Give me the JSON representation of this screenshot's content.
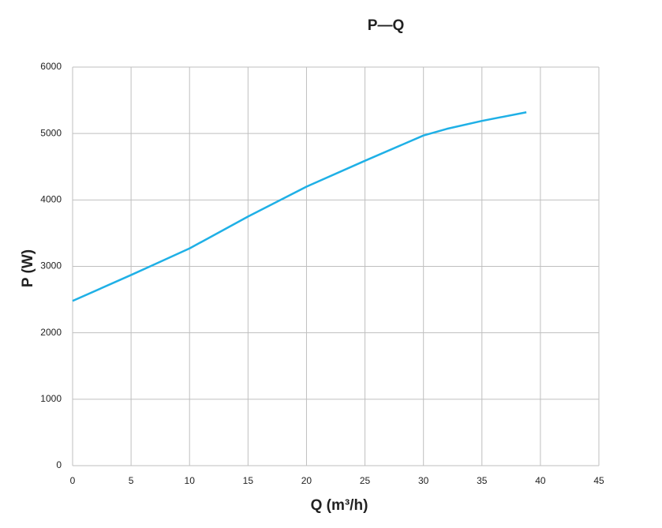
{
  "chart_data": {
    "type": "line",
    "title": "P—Q",
    "x_label": "Q (m³/h)",
    "y_label": "P (W)",
    "x": [
      0,
      5,
      7,
      10,
      15,
      20,
      25,
      30,
      32,
      35,
      38.8
    ],
    "series": [
      {
        "name": "P",
        "color": "#1fb0e6",
        "values": [
          2480,
          2870,
          3030,
          3270,
          3750,
          4200,
          4590,
          4970,
          5070,
          5190,
          5320
        ]
      }
    ],
    "xlim": [
      0,
      45
    ],
    "xticks": [
      0,
      5,
      10,
      15,
      20,
      25,
      30,
      35,
      40,
      45
    ],
    "ylim": [
      0,
      6000
    ],
    "yticks": [
      0,
      1000,
      2000,
      3000,
      4000,
      5000,
      6000
    ],
    "grid": true
  }
}
